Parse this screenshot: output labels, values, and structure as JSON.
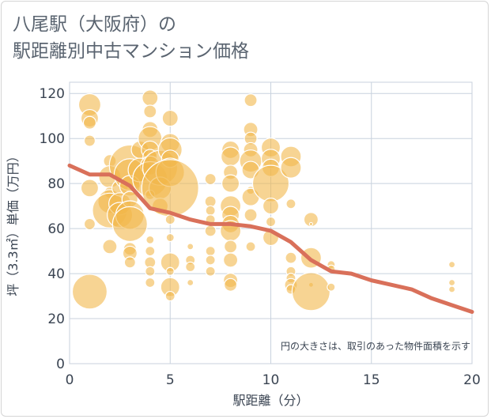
{
  "title": "八尾駅（大阪府）の\n駅距離別中古マンション価格",
  "chart_data": {
    "type": "scatter",
    "xlabel": "駅距離（分）",
    "ylabel": "坪（3.3㎡）単価（万円）",
    "note": "円の大きさは、取引のあった物件面積を示す",
    "xlim": [
      0,
      20
    ],
    "ylim": [
      0,
      125
    ],
    "xticks": [
      0,
      5,
      10,
      15,
      20
    ],
    "yticks": [
      0,
      20,
      40,
      60,
      80,
      100,
      120
    ],
    "grid": true,
    "colors": {
      "bubble": "#f2b84b",
      "trend": "#d9705a",
      "grid": "#c8d2de"
    },
    "bubbles": [
      [
        1,
        115,
        14
      ],
      [
        1,
        109,
        11
      ],
      [
        1,
        107,
        8
      ],
      [
        1,
        99,
        7
      ],
      [
        1,
        78,
        11
      ],
      [
        1,
        62,
        7
      ],
      [
        1,
        32,
        22
      ],
      [
        2,
        90,
        8
      ],
      [
        2,
        83,
        14
      ],
      [
        2,
        76,
        7
      ],
      [
        2,
        72,
        15
      ],
      [
        2,
        68,
        22
      ],
      [
        2,
        52,
        9
      ],
      [
        2.5,
        78,
        10
      ],
      [
        2.5,
        71,
        14
      ],
      [
        2.5,
        66,
        16
      ],
      [
        3,
        88,
        26
      ],
      [
        3,
        84,
        20
      ],
      [
        3,
        79,
        13
      ],
      [
        3,
        73,
        10
      ],
      [
        3,
        66,
        18
      ],
      [
        3,
        62,
        22
      ],
      [
        3,
        51,
        8
      ],
      [
        3,
        49,
        9
      ],
      [
        3,
        45,
        7
      ],
      [
        3.5,
        95,
        11
      ],
      [
        3.5,
        86,
        15
      ],
      [
        4,
        118,
        10
      ],
      [
        4,
        112,
        8
      ],
      [
        4,
        104,
        10
      ],
      [
        4,
        100,
        15
      ],
      [
        4,
        95,
        11
      ],
      [
        4,
        92,
        9
      ],
      [
        4,
        88,
        12
      ],
      [
        4,
        82,
        22
      ],
      [
        4,
        75,
        6
      ],
      [
        4,
        55,
        5
      ],
      [
        4,
        50,
        6
      ],
      [
        4,
        45,
        7
      ],
      [
        4,
        41,
        6
      ],
      [
        4,
        36,
        6
      ],
      [
        4.5,
        87,
        22
      ],
      [
        4.5,
        78,
        14
      ],
      [
        4.5,
        70,
        10
      ],
      [
        5,
        109,
        10
      ],
      [
        5,
        98,
        12
      ],
      [
        5,
        95,
        15
      ],
      [
        5,
        91,
        11
      ],
      [
        5,
        85,
        18
      ],
      [
        5,
        78,
        36
      ],
      [
        5,
        64,
        6
      ],
      [
        5,
        56,
        5
      ],
      [
        5,
        45,
        12
      ],
      [
        5,
        41,
        5
      ],
      [
        5,
        34,
        12
      ],
      [
        5,
        30,
        6
      ],
      [
        6,
        52,
        4
      ],
      [
        6,
        46,
        6
      ],
      [
        6,
        43,
        6
      ],
      [
        6,
        36,
        4
      ],
      [
        7,
        82,
        7
      ],
      [
        7,
        72,
        7
      ],
      [
        7,
        68,
        6
      ],
      [
        7,
        64,
        6
      ],
      [
        7,
        59,
        7
      ],
      [
        7,
        50,
        6
      ],
      [
        7,
        46,
        6
      ],
      [
        7,
        41,
        6
      ],
      [
        8,
        95,
        11
      ],
      [
        8,
        92,
        12
      ],
      [
        8,
        85,
        9
      ],
      [
        8,
        80,
        11
      ],
      [
        8,
        70,
        13
      ],
      [
        8,
        66,
        11
      ],
      [
        8,
        62,
        11
      ],
      [
        8,
        59,
        13
      ],
      [
        8,
        52,
        8
      ],
      [
        8,
        46,
        9
      ],
      [
        8,
        37,
        9
      ],
      [
        8,
        35,
        8
      ],
      [
        9,
        117,
        8
      ],
      [
        9,
        104,
        9
      ],
      [
        9,
        100,
        8
      ],
      [
        9,
        95,
        9
      ],
      [
        9,
        90,
        14
      ],
      [
        9,
        86,
        11
      ],
      [
        9,
        77,
        5
      ],
      [
        9,
        74,
        11
      ],
      [
        9,
        66,
        8
      ],
      [
        9,
        52,
        6
      ],
      [
        10,
        96,
        12
      ],
      [
        10,
        91,
        12
      ],
      [
        10,
        87,
        11
      ],
      [
        10,
        80,
        23
      ],
      [
        10,
        70,
        10
      ],
      [
        10,
        63,
        6
      ],
      [
        10,
        56,
        10
      ],
      [
        11,
        92,
        13
      ],
      [
        11,
        87,
        13
      ],
      [
        11,
        71,
        6
      ],
      [
        11,
        47,
        7
      ],
      [
        11,
        41,
        6
      ],
      [
        11,
        38,
        6
      ],
      [
        11,
        35,
        8
      ],
      [
        11,
        33,
        6
      ],
      [
        12,
        64,
        9
      ],
      [
        12,
        62,
        2
      ],
      [
        12,
        47,
        13
      ],
      [
        12,
        35,
        3
      ],
      [
        12,
        32,
        24
      ],
      [
        13,
        44,
        5
      ],
      [
        13,
        42,
        5
      ],
      [
        13,
        34,
        5
      ],
      [
        19,
        44,
        4
      ],
      [
        19,
        36,
        4
      ],
      [
        19,
        33,
        4
      ]
    ],
    "trend": {
      "x": [
        0,
        1,
        2,
        3,
        4,
        5,
        6,
        7,
        8,
        9,
        10,
        11,
        12,
        13,
        14,
        15,
        16,
        17,
        18,
        19,
        20
      ],
      "y": [
        88,
        84,
        84,
        79,
        69,
        67,
        64,
        62,
        62,
        61,
        59,
        54,
        46,
        41,
        40,
        37,
        35,
        33,
        29,
        26,
        23
      ]
    }
  }
}
